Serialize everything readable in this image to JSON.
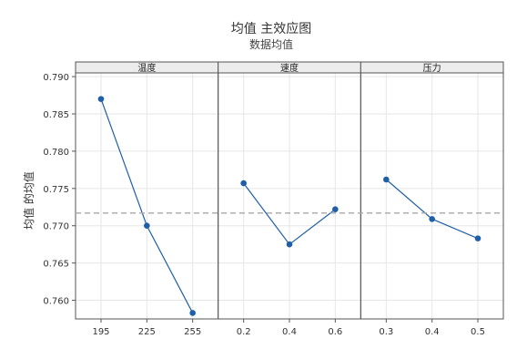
{
  "chart_data": {
    "type": "line",
    "title": "均值 主效应图",
    "subtitle": "数据均值",
    "ylabel": "均值 的均值",
    "ylim": [
      0.7575,
      0.7905
    ],
    "yticks": [
      "0.760",
      "0.765",
      "0.770",
      "0.775",
      "0.780",
      "0.785",
      "0.790"
    ],
    "reference_line": 0.7717,
    "grid": true,
    "colors": {
      "series": "#1f5fa8",
      "reference": "#a8a8a8",
      "grid": "#e6e6e6",
      "strip": "#ececec"
    },
    "panels": [
      {
        "name": "温度",
        "x": [
          "195",
          "225",
          "255"
        ],
        "values": [
          0.787,
          0.77,
          0.7583
        ]
      },
      {
        "name": "速度",
        "x": [
          "0.2",
          "0.4",
          "0.6"
        ],
        "values": [
          0.7757,
          0.7675,
          0.7722
        ]
      },
      {
        "name": "压力",
        "x": [
          "0.3",
          "0.4",
          "0.5"
        ],
        "values": [
          0.7762,
          0.7709,
          0.7683
        ]
      }
    ]
  }
}
